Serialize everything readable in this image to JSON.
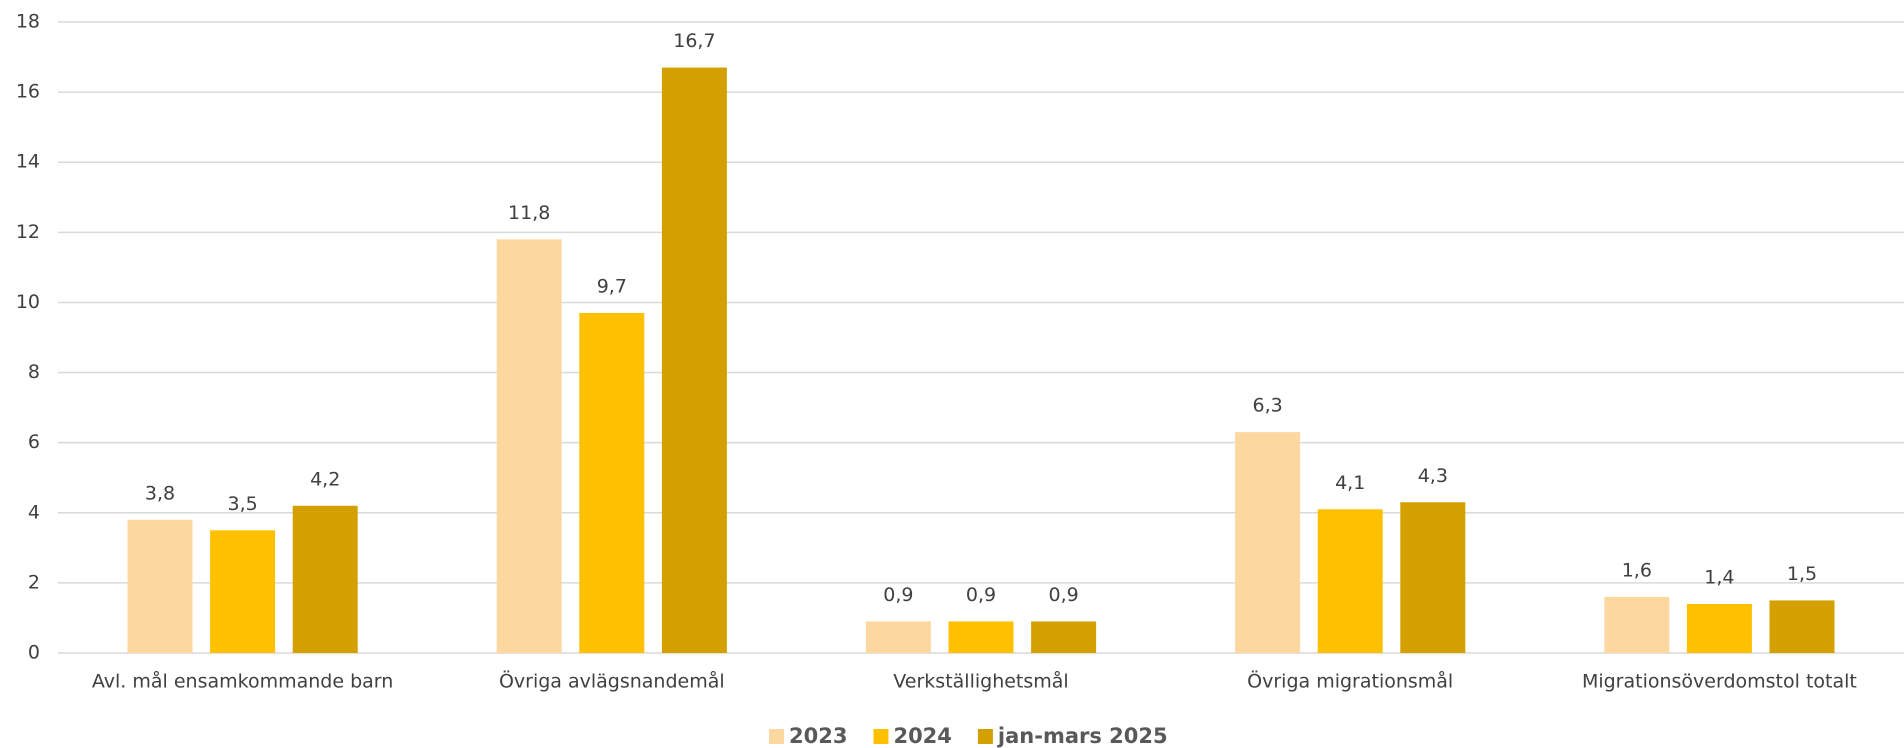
{
  "chart_data": {
    "type": "bar",
    "categories": [
      "Avl. mål ensamkommande barn",
      "Övriga avlägsnandemål",
      "Verkställighetsmål",
      "Övriga migrationsmål",
      "Migrationsöverdomstol totalt"
    ],
    "series": [
      {
        "name": "2023",
        "color": "#fdd7a0",
        "values": [
          3.8,
          11.8,
          0.9,
          6.3,
          1.6
        ],
        "value_labels": [
          "3,8",
          "11,8",
          "0,9",
          "6,3",
          "1,6"
        ]
      },
      {
        "name": "2024",
        "color": "#ffc000",
        "values": [
          3.5,
          9.7,
          0.9,
          4.1,
          1.4
        ],
        "value_labels": [
          "3,5",
          "9,7",
          "0,9",
          "4,1",
          "1,4"
        ]
      },
      {
        "name": "jan-mars 2025",
        "color": "#d4a000",
        "values": [
          4.2,
          16.7,
          0.9,
          4.3,
          1.5
        ],
        "value_labels": [
          "4,2",
          "16,7",
          "0,9",
          "4,3",
          "1,5"
        ]
      }
    ],
    "ylim": [
      0,
      18
    ],
    "yticks": [
      0,
      2,
      4,
      6,
      8,
      10,
      12,
      14,
      16,
      18
    ],
    "grid": true,
    "legend": "bottom"
  }
}
